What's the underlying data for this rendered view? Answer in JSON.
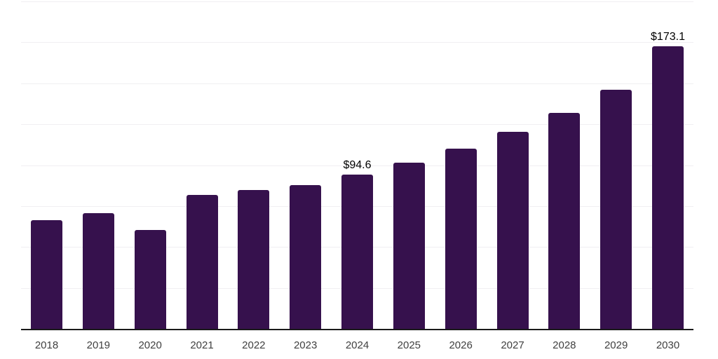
{
  "chart_data": {
    "type": "bar",
    "title": "",
    "xlabel": "",
    "ylabel": "",
    "categories": [
      "2018",
      "2019",
      "2020",
      "2021",
      "2022",
      "2023",
      "2024",
      "2025",
      "2026",
      "2027",
      "2028",
      "2029",
      "2030"
    ],
    "values": [
      66.8,
      71.0,
      61.0,
      82.4,
      85.1,
      88.3,
      94.6,
      102.0,
      110.6,
      120.8,
      132.4,
      146.5,
      173.1
    ],
    "bar_labels": [
      null,
      null,
      null,
      null,
      null,
      null,
      "$94.6",
      null,
      null,
      null,
      null,
      null,
      "$173.1"
    ],
    "ylim": [
      0,
      200
    ],
    "gridline_step": 25,
    "grid": "horizontal-only",
    "y_tick_labels_visible": false,
    "legend_position": "none",
    "bar_color": "#36114d",
    "gridline_color": "#f0eff2",
    "axis_line_color": "#1a1a1a",
    "tick_label_color": "#404040",
    "data_label_color": "#000000"
  }
}
